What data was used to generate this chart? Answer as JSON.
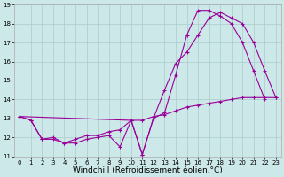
{
  "xlabel": "Windchill (Refroidissement éolien,°C)",
  "bg_color": "#cce8e8",
  "line_color": "#990099",
  "grid_color": "#aacccc",
  "xlim": [
    -0.5,
    23.5
  ],
  "ylim": [
    11,
    19
  ],
  "xticks": [
    0,
    1,
    2,
    3,
    4,
    5,
    6,
    7,
    8,
    9,
    10,
    11,
    12,
    13,
    14,
    15,
    16,
    17,
    18,
    19,
    20,
    21,
    22,
    23
  ],
  "yticks": [
    11,
    12,
    13,
    14,
    15,
    16,
    17,
    18,
    19
  ],
  "line1_x": [
    0,
    1,
    2,
    3,
    4,
    5,
    6,
    7,
    8,
    9,
    10,
    11,
    12,
    13,
    14,
    15,
    16,
    17,
    18,
    19,
    20,
    21,
    22
  ],
  "line1_y": [
    13.1,
    12.9,
    11.9,
    11.9,
    11.7,
    11.7,
    11.9,
    12.0,
    12.1,
    11.5,
    12.9,
    11.1,
    13.0,
    13.3,
    15.3,
    17.4,
    18.7,
    18.7,
    18.4,
    18.0,
    17.0,
    15.5,
    14.0
  ],
  "line2_x": [
    0,
    1,
    2,
    3,
    4,
    5,
    6,
    7,
    8,
    9,
    10,
    11,
    12,
    13,
    14,
    15,
    16,
    17,
    18,
    19,
    20,
    21,
    22,
    23
  ],
  "line2_y": [
    13.1,
    12.9,
    11.9,
    12.0,
    11.7,
    11.9,
    12.1,
    12.1,
    12.3,
    12.4,
    12.9,
    12.9,
    13.1,
    13.2,
    13.4,
    13.6,
    13.7,
    13.8,
    13.9,
    14.0,
    14.1,
    14.1,
    14.1,
    14.1
  ],
  "line3_x": [
    0,
    10,
    11,
    12,
    13,
    14,
    15,
    16,
    17,
    18,
    19,
    20,
    21,
    22,
    23
  ],
  "line3_y": [
    13.1,
    12.9,
    11.1,
    13.0,
    14.5,
    15.9,
    16.5,
    17.4,
    18.3,
    18.6,
    18.3,
    18.0,
    17.0,
    15.5,
    14.1
  ],
  "marker": "+",
  "markersize": 3,
  "linewidth": 0.8,
  "tick_fontsize": 5,
  "xlabel_fontsize": 6.5
}
